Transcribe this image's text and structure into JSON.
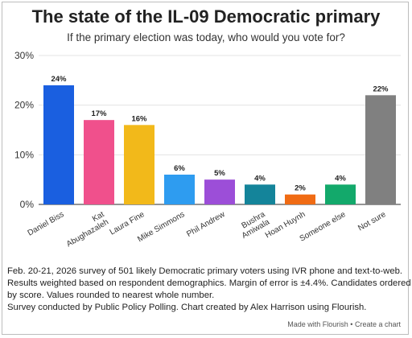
{
  "header": {
    "title": "The state of the IL-09 Democratic primary",
    "subtitle": "If the primary election was today, who would you vote for?"
  },
  "chart_data": {
    "type": "bar",
    "title": "The state of the IL-09 Democratic primary",
    "subtitle": "If the primary election was today, who would you vote for?",
    "categories": [
      "Daniel Biss",
      "Kat Abughazaleh",
      "Laura Fine",
      "Mike Simmons",
      "Phil Andrew",
      "Bushra Amiwala",
      "Hoan Huynh",
      "Someone else",
      "Not sure"
    ],
    "category_lines": [
      [
        "Daniel Biss"
      ],
      [
        "Kat",
        "Abughazaleh"
      ],
      [
        "Laura Fine"
      ],
      [
        "Mike Simmons"
      ],
      [
        "Phil Andrew"
      ],
      [
        "Bushra",
        "Amiwala"
      ],
      [
        "Hoan Huynh"
      ],
      [
        "Someone else"
      ],
      [
        "Not sure"
      ]
    ],
    "values": [
      24,
      17,
      16,
      6,
      5,
      4,
      2,
      4,
      22
    ],
    "value_labels": [
      "24%",
      "17%",
      "16%",
      "6%",
      "5%",
      "4%",
      "2%",
      "4%",
      "22%"
    ],
    "colors": [
      "#1a5fe0",
      "#f0508c",
      "#f2b91a",
      "#2e9cf0",
      "#9c4ed8",
      "#14849a",
      "#f06b14",
      "#13a96b",
      "#808080"
    ],
    "ylim": [
      0,
      30
    ],
    "yticks": [
      0,
      10,
      20,
      30
    ],
    "ytick_labels": [
      "0%",
      "10%",
      "20%",
      "30%"
    ],
    "xlabel": "",
    "ylabel": "",
    "grid": true
  },
  "notes": {
    "line1": "Feb. 20-21, 2026 survey of 501 likely Democratic primary voters using IVR phone and text-to-web.",
    "line2": "Results weighted based on respondent demographics. Margin of error is ±4.4%. Candidates ordered",
    "line3": "by score. Values rounded to nearest whole number.",
    "line4": "Survey conducted by Public Policy Polling. Chart created by Alex Harrison using Flourish."
  },
  "footer": {
    "credit": "Made with Flourish • Create a chart"
  }
}
